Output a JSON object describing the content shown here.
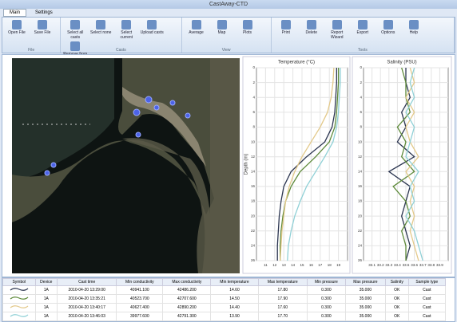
{
  "window": {
    "title": "CastAway-CTD"
  },
  "ribbon": {
    "tabs": [
      "Main",
      "Settings"
    ],
    "groups": [
      {
        "label": "File",
        "buttons": [
          "Open File",
          "Save File"
        ]
      },
      {
        "label": "Casts",
        "buttons": [
          "Select all casts",
          "Select none",
          "Select current",
          "Upload casts",
          "Remove from selection"
        ]
      },
      {
        "label": "View",
        "buttons": [
          "Average",
          "Map",
          "Plots"
        ]
      },
      {
        "label": "Tools",
        "buttons": [
          "Print",
          "Delete",
          "Report Wizard",
          "Export",
          "Options",
          "Help"
        ]
      }
    ]
  },
  "charts": [
    {
      "type": "line",
      "title": "Temperature (°C)",
      "ylabel": "Depth (m)",
      "xlim": [
        10,
        20
      ],
      "xticks": [
        11,
        12,
        13,
        14,
        15,
        16,
        17,
        18,
        19
      ],
      "ylim": [
        0,
        26
      ],
      "yticks": [
        0,
        2,
        4,
        6,
        8,
        10,
        12,
        14,
        16,
        18,
        20,
        22,
        24,
        26
      ],
      "grid": true,
      "depths": [
        0,
        2,
        4,
        6,
        8,
        10,
        12,
        14,
        16,
        18,
        20,
        22,
        24,
        26
      ],
      "series": [
        {
          "color": "#2b3550",
          "values": [
            18.8,
            18.8,
            18.7,
            18.6,
            18.3,
            17.5,
            15.5,
            13.8,
            13.0,
            12.7,
            12.5,
            12.4,
            12.3,
            12.3
          ]
        },
        {
          "color": "#5e8a3a",
          "values": [
            19.0,
            19.0,
            18.9,
            18.8,
            18.6,
            18.0,
            16.5,
            14.8,
            13.8,
            13.2,
            12.9,
            12.7,
            12.6,
            12.6
          ]
        },
        {
          "color": "#e3c98a",
          "values": [
            18.5,
            18.4,
            18.2,
            17.8,
            17.0,
            16.0,
            15.0,
            14.2,
            13.6,
            13.2,
            13.0,
            12.8,
            12.7,
            12.6
          ]
        },
        {
          "color": "#8fd0d6",
          "values": [
            19.2,
            19.2,
            19.1,
            19.0,
            18.8,
            18.4,
            17.5,
            16.5,
            15.5,
            14.8,
            14.2,
            13.8,
            13.5,
            13.4
          ]
        }
      ]
    },
    {
      "type": "line",
      "title": "Salinity (PSU)",
      "xlim": [
        33.0,
        34.0
      ],
      "xticks": [
        33.1,
        33.2,
        33.3,
        33.4,
        33.5,
        33.6,
        33.7,
        33.8,
        33.9
      ],
      "ylim": [
        0,
        26
      ],
      "yticks": [
        0,
        2,
        4,
        6,
        8,
        10,
        12,
        14,
        16,
        18,
        20,
        22,
        24,
        26
      ],
      "grid": true,
      "depths": [
        0,
        2,
        4,
        6,
        8,
        10,
        12,
        14,
        16,
        18,
        20,
        22,
        24,
        26
      ],
      "series": [
        {
          "color": "#2b3550",
          "values": [
            33.5,
            33.5,
            33.55,
            33.45,
            33.5,
            33.4,
            33.6,
            33.3,
            33.55,
            33.5,
            33.45,
            33.5,
            33.55,
            33.5
          ]
        },
        {
          "color": "#5e8a3a",
          "values": [
            33.45,
            33.5,
            33.5,
            33.55,
            33.4,
            33.5,
            33.45,
            33.6,
            33.35,
            33.5,
            33.55,
            33.45,
            33.5,
            33.5
          ]
        },
        {
          "color": "#e3c98a",
          "values": [
            33.55,
            33.6,
            33.5,
            33.6,
            33.5,
            33.55,
            33.65,
            33.5,
            33.6,
            33.55,
            33.6,
            33.55,
            33.6,
            33.65
          ]
        },
        {
          "color": "#8fd0d6",
          "values": [
            33.6,
            33.55,
            33.6,
            33.5,
            33.6,
            33.55,
            33.5,
            33.65,
            33.55,
            33.6,
            33.5,
            33.6,
            33.65,
            33.7
          ]
        }
      ]
    }
  ],
  "table": {
    "columns": [
      "Symbol",
      "Device",
      "Cast time",
      "Min conductivity",
      "Max conductivity",
      "Min temperature",
      "Max temperature",
      "Min pressure",
      "Max pressure",
      "Salinity",
      "Sample type"
    ],
    "rows": [
      [
        "",
        "1A",
        "2010-04-20 13:29:00",
        "40941.100",
        "42486.200",
        "14.60",
        "17.80",
        "0.300",
        "35.000",
        "OK",
        "Cast"
      ],
      [
        "",
        "1A",
        "2010-04-20 13:35:21",
        "40523.700",
        "42707.600",
        "14.50",
        "17.90",
        "0.300",
        "35.000",
        "OK",
        "Cast"
      ],
      [
        "",
        "1A",
        "2010-04-20 13:40:17",
        "40627.400",
        "42890.200",
        "14.40",
        "17.60",
        "0.300",
        "35.000",
        "OK",
        "Cast"
      ],
      [
        "",
        "1A",
        "2010-04-20 13:46:03",
        "39977.600",
        "42791.300",
        "13.90",
        "17.70",
        "0.300",
        "35.000",
        "OK",
        "Cast"
      ]
    ]
  }
}
